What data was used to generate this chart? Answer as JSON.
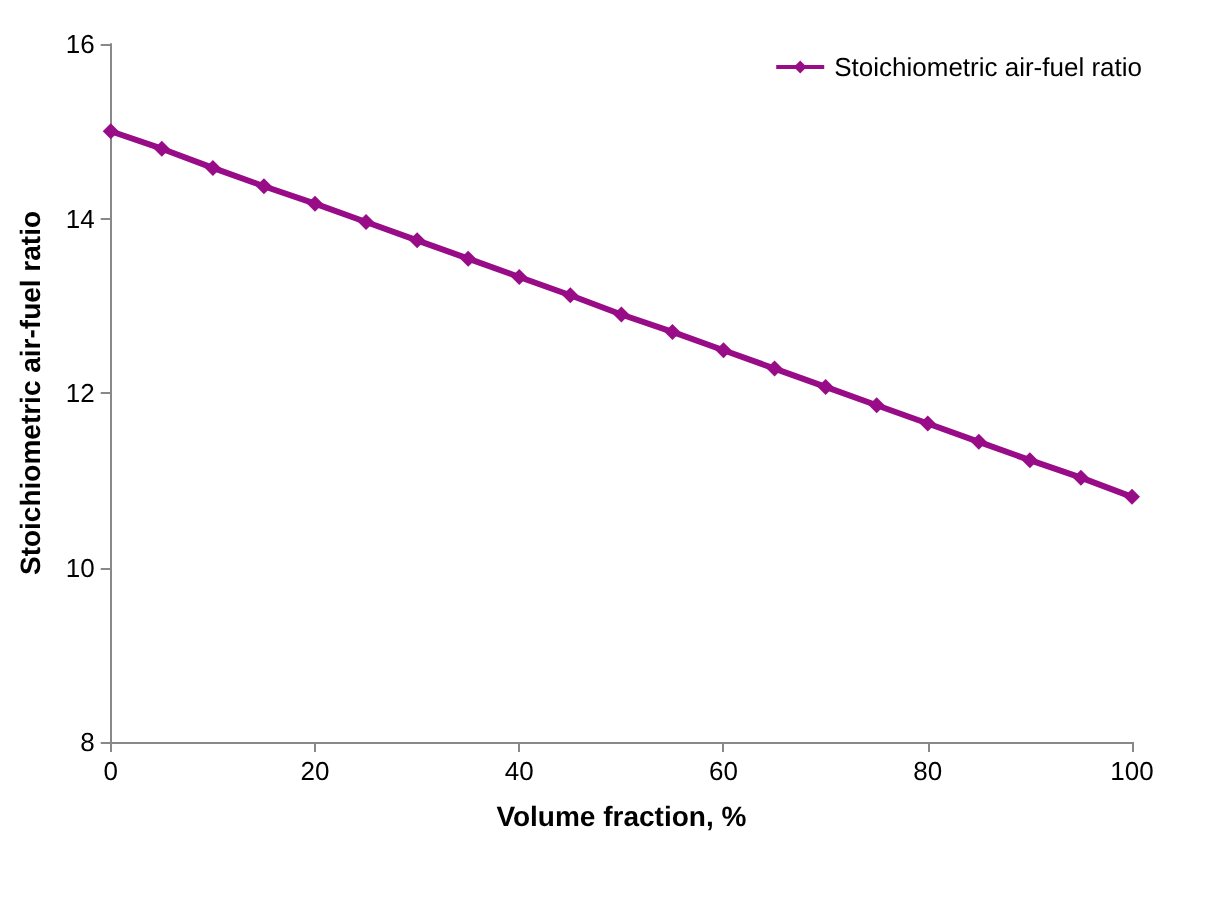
{
  "chart_data": {
    "type": "line",
    "xlabel": "Volume fraction, %",
    "ylabel": "Stoichiometric air-fuel ratio",
    "x": [
      0,
      5,
      10,
      15,
      20,
      25,
      30,
      35,
      40,
      45,
      50,
      55,
      60,
      65,
      70,
      75,
      80,
      85,
      90,
      95,
      100
    ],
    "series": [
      {
        "name": "Stoichiometric air-fuel ratio",
        "color": "#990c88",
        "values": [
          15.0,
          14.8,
          14.58,
          14.37,
          14.17,
          13.96,
          13.75,
          13.54,
          13.33,
          13.12,
          12.9,
          12.7,
          12.49,
          12.28,
          12.07,
          11.86,
          11.65,
          11.44,
          11.23,
          11.03,
          10.81
        ]
      }
    ],
    "xlim": [
      0,
      100
    ],
    "xticks": [
      0,
      20,
      40,
      60,
      80,
      100
    ],
    "ylim": [
      8,
      16
    ],
    "yticks": [
      8,
      10,
      12,
      14,
      16
    ],
    "grid": false,
    "legend": "top right",
    "marker": "diamond",
    "line_style": "solid"
  }
}
